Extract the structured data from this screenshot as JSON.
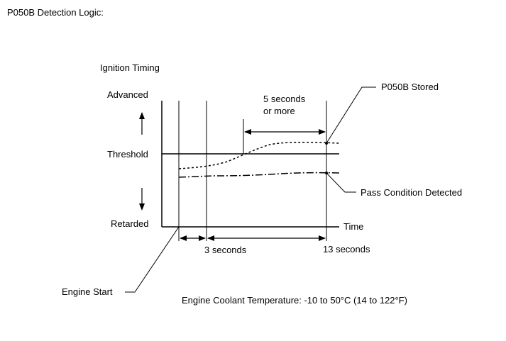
{
  "title": "P050B Detection Logic:",
  "y_axis_label": "Ignition Timing",
  "levels": {
    "advanced": "Advanced",
    "threshold": "Threshold",
    "retarded": "Retarded"
  },
  "x_axis_label": "Time",
  "annotations": {
    "duration": "5 seconds",
    "duration_suffix": "or more",
    "stored": "P050B Stored",
    "pass": "Pass Condition Detected",
    "engine_start": "Engine Start",
    "three_seconds": "3 seconds",
    "thirteen_seconds": "13 seconds"
  },
  "condition": "Engine Coolant Temperature: -10 to 50°C (14 to 122°F)",
  "colors": {
    "line": "#000000",
    "background": "#ffffff"
  }
}
